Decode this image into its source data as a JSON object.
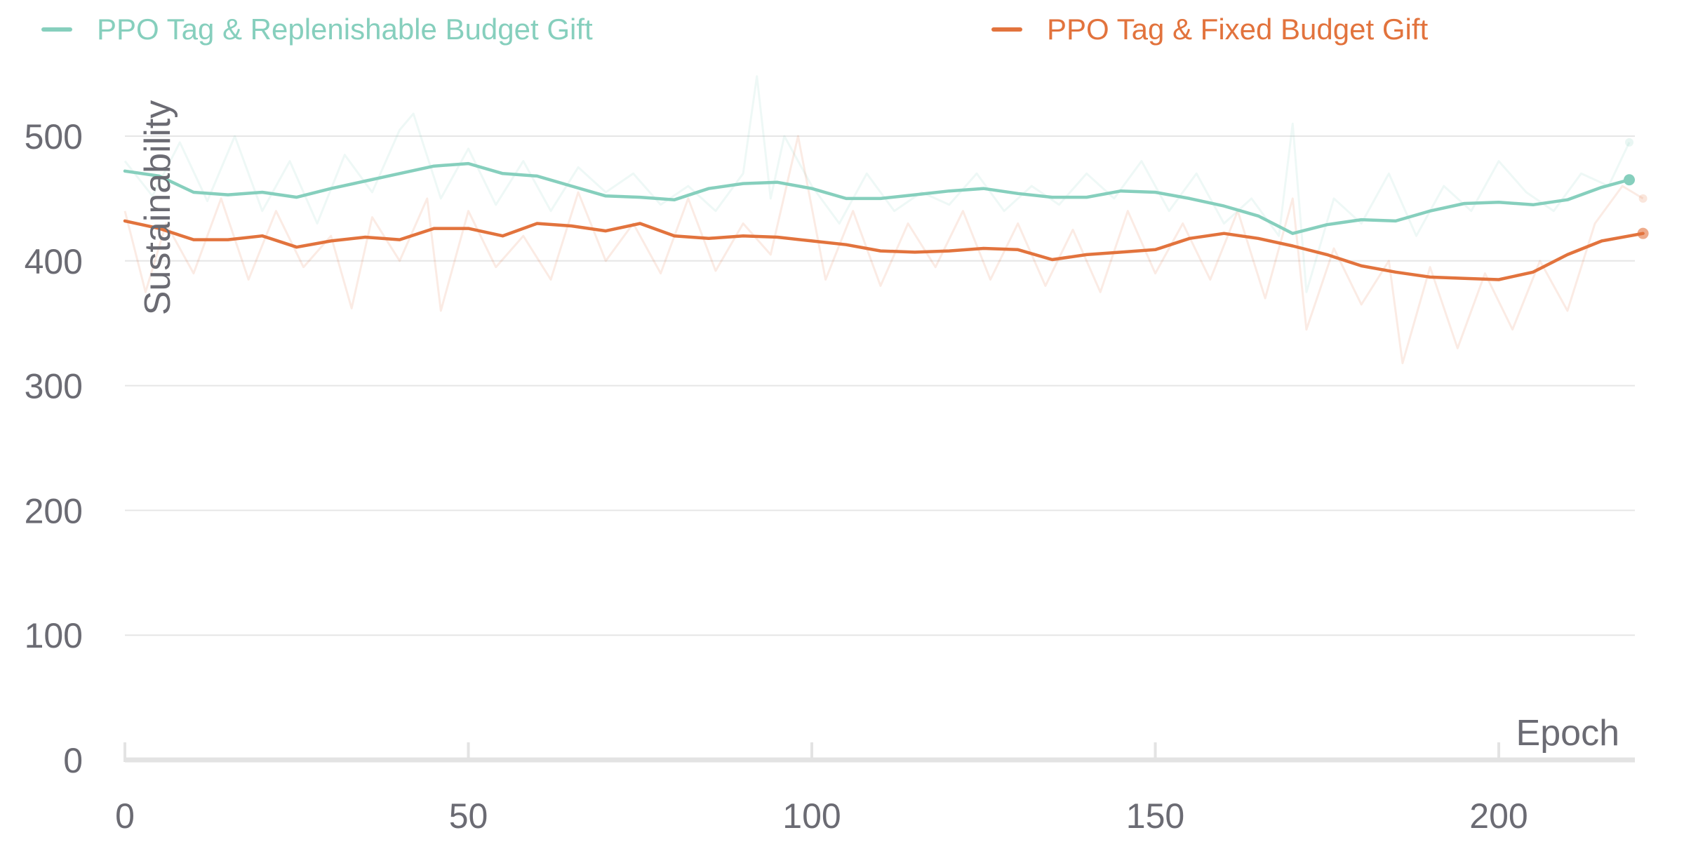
{
  "chart_data": {
    "type": "line",
    "title": "",
    "xlabel": "Epoch",
    "ylabel": "Sustainability",
    "xlim": [
      0,
      221
    ],
    "ylim": [
      0,
      550
    ],
    "x_ticks": [
      "0",
      "50",
      "100",
      "150",
      "200"
    ],
    "y_ticks": [
      "0",
      "100",
      "200",
      "300",
      "400",
      "500"
    ],
    "grid": true,
    "legend_position": "top",
    "smoothed_series": [
      {
        "name": "PPO Tag & Replenishable Budget Gift",
        "color": "#86cfbd",
        "points": [
          [
            0,
            472
          ],
          [
            5,
            468
          ],
          [
            10,
            455
          ],
          [
            15,
            453
          ],
          [
            20,
            455
          ],
          [
            25,
            451
          ],
          [
            30,
            458
          ],
          [
            35,
            464
          ],
          [
            40,
            470
          ],
          [
            45,
            476
          ],
          [
            50,
            478
          ],
          [
            55,
            470
          ],
          [
            60,
            468
          ],
          [
            65,
            460
          ],
          [
            70,
            452
          ],
          [
            75,
            451
          ],
          [
            80,
            449
          ],
          [
            85,
            458
          ],
          [
            90,
            462
          ],
          [
            95,
            463
          ],
          [
            100,
            458
          ],
          [
            105,
            450
          ],
          [
            110,
            450
          ],
          [
            115,
            453
          ],
          [
            120,
            456
          ],
          [
            125,
            458
          ],
          [
            130,
            454
          ],
          [
            135,
            451
          ],
          [
            140,
            451
          ],
          [
            145,
            456
          ],
          [
            150,
            455
          ],
          [
            155,
            450
          ],
          [
            160,
            444
          ],
          [
            165,
            436
          ],
          [
            170,
            422
          ],
          [
            175,
            429
          ],
          [
            180,
            433
          ],
          [
            185,
            432
          ],
          [
            190,
            440
          ],
          [
            195,
            446
          ],
          [
            200,
            447
          ],
          [
            205,
            445
          ],
          [
            210,
            449
          ],
          [
            215,
            459
          ],
          [
            219,
            465
          ]
        ]
      },
      {
        "name": "PPO Tag & Fixed Budget Gift",
        "color": "#e2733d",
        "points": [
          [
            0,
            432
          ],
          [
            5,
            426
          ],
          [
            10,
            417
          ],
          [
            15,
            417
          ],
          [
            20,
            420
          ],
          [
            25,
            411
          ],
          [
            30,
            416
          ],
          [
            35,
            419
          ],
          [
            40,
            417
          ],
          [
            45,
            426
          ],
          [
            50,
            426
          ],
          [
            55,
            420
          ],
          [
            60,
            430
          ],
          [
            65,
            428
          ],
          [
            70,
            424
          ],
          [
            75,
            430
          ],
          [
            80,
            420
          ],
          [
            85,
            418
          ],
          [
            90,
            420
          ],
          [
            95,
            419
          ],
          [
            100,
            416
          ],
          [
            105,
            413
          ],
          [
            110,
            408
          ],
          [
            115,
            407
          ],
          [
            120,
            408
          ],
          [
            125,
            410
          ],
          [
            130,
            409
          ],
          [
            135,
            401
          ],
          [
            140,
            405
          ],
          [
            145,
            407
          ],
          [
            150,
            409
          ],
          [
            155,
            418
          ],
          [
            160,
            422
          ],
          [
            165,
            418
          ],
          [
            170,
            412
          ],
          [
            175,
            405
          ],
          [
            180,
            396
          ],
          [
            185,
            391
          ],
          [
            190,
            387
          ],
          [
            195,
            386
          ],
          [
            200,
            385
          ],
          [
            205,
            391
          ],
          [
            210,
            405
          ],
          [
            215,
            416
          ],
          [
            221,
            422
          ]
        ]
      }
    ],
    "raw_series": [
      {
        "name": "PPO Tag & Replenishable Budget Gift",
        "color": "#86cfbd",
        "points": [
          [
            0,
            480
          ],
          [
            4,
            452
          ],
          [
            8,
            495
          ],
          [
            12,
            448
          ],
          [
            16,
            500
          ],
          [
            20,
            440
          ],
          [
            24,
            480
          ],
          [
            28,
            430
          ],
          [
            32,
            485
          ],
          [
            36,
            455
          ],
          [
            40,
            505
          ],
          [
            42,
            518
          ],
          [
            46,
            450
          ],
          [
            50,
            490
          ],
          [
            54,
            445
          ],
          [
            58,
            480
          ],
          [
            62,
            440
          ],
          [
            66,
            475
          ],
          [
            70,
            455
          ],
          [
            74,
            470
          ],
          [
            78,
            445
          ],
          [
            82,
            460
          ],
          [
            86,
            440
          ],
          [
            90,
            470
          ],
          [
            92,
            548
          ],
          [
            94,
            450
          ],
          [
            96,
            500
          ],
          [
            100,
            460
          ],
          [
            104,
            430
          ],
          [
            108,
            470
          ],
          [
            112,
            440
          ],
          [
            116,
            455
          ],
          [
            120,
            445
          ],
          [
            124,
            470
          ],
          [
            128,
            440
          ],
          [
            132,
            460
          ],
          [
            136,
            445
          ],
          [
            140,
            470
          ],
          [
            144,
            450
          ],
          [
            148,
            480
          ],
          [
            152,
            440
          ],
          [
            156,
            470
          ],
          [
            160,
            430
          ],
          [
            164,
            450
          ],
          [
            168,
            420
          ],
          [
            170,
            510
          ],
          [
            172,
            375
          ],
          [
            176,
            450
          ],
          [
            180,
            430
          ],
          [
            184,
            470
          ],
          [
            188,
            420
          ],
          [
            192,
            460
          ],
          [
            196,
            440
          ],
          [
            200,
            480
          ],
          [
            204,
            455
          ],
          [
            208,
            440
          ],
          [
            212,
            470
          ],
          [
            216,
            460
          ],
          [
            219,
            495
          ]
        ]
      },
      {
        "name": "PPO Tag & Fixed Budget Gift",
        "color": "#e2733d",
        "points": [
          [
            0,
            440
          ],
          [
            3,
            375
          ],
          [
            6,
            430
          ],
          [
            10,
            390
          ],
          [
            14,
            450
          ],
          [
            18,
            385
          ],
          [
            22,
            440
          ],
          [
            26,
            395
          ],
          [
            30,
            420
          ],
          [
            33,
            362
          ],
          [
            36,
            435
          ],
          [
            40,
            400
          ],
          [
            44,
            450
          ],
          [
            46,
            360
          ],
          [
            50,
            440
          ],
          [
            54,
            395
          ],
          [
            58,
            420
          ],
          [
            62,
            385
          ],
          [
            66,
            455
          ],
          [
            70,
            400
          ],
          [
            74,
            430
          ],
          [
            78,
            390
          ],
          [
            82,
            450
          ],
          [
            86,
            392
          ],
          [
            90,
            430
          ],
          [
            94,
            405
          ],
          [
            98,
            500
          ],
          [
            102,
            385
          ],
          [
            106,
            440
          ],
          [
            110,
            380
          ],
          [
            114,
            430
          ],
          [
            118,
            395
          ],
          [
            122,
            440
          ],
          [
            126,
            385
          ],
          [
            130,
            430
          ],
          [
            134,
            380
          ],
          [
            138,
            425
          ],
          [
            142,
            375
          ],
          [
            146,
            440
          ],
          [
            150,
            390
          ],
          [
            154,
            430
          ],
          [
            158,
            385
          ],
          [
            162,
            440
          ],
          [
            166,
            370
          ],
          [
            170,
            450
          ],
          [
            172,
            345
          ],
          [
            176,
            410
          ],
          [
            180,
            365
          ],
          [
            184,
            400
          ],
          [
            186,
            318
          ],
          [
            190,
            395
          ],
          [
            194,
            330
          ],
          [
            198,
            390
          ],
          [
            202,
            345
          ],
          [
            206,
            400
          ],
          [
            210,
            360
          ],
          [
            214,
            430
          ],
          [
            218,
            460
          ],
          [
            221,
            450
          ]
        ]
      }
    ]
  }
}
